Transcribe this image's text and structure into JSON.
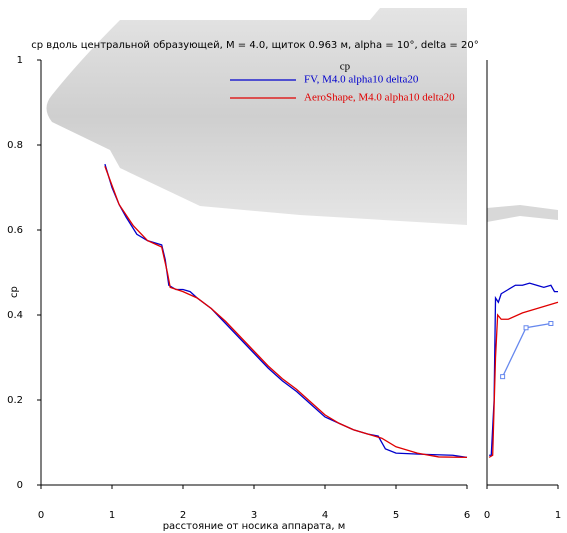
{
  "chart_data": [
    {
      "type": "line",
      "title": "cp вдоль центральной образующей, M = 4.0, щиток 0.963 м, alpha = 10°, delta = 20°",
      "x_label": "расстояние от носика аппарата, м",
      "y_label": "cp",
      "legend_title": "cp",
      "xlim": [
        0,
        6
      ],
      "xticks": [
        0,
        1,
        2,
        3,
        4,
        5,
        6
      ],
      "ylim": [
        0,
        1
      ],
      "yticks": [
        0,
        0.2,
        0.4,
        0.6,
        0.8,
        1
      ],
      "series": [
        {
          "name": "FV, M4.0 alpha10 delta20",
          "color": "#0000cc",
          "x": [
            0.9,
            1.0,
            1.1,
            1.2,
            1.35,
            1.5,
            1.7,
            1.75,
            1.8,
            1.9,
            2.0,
            2.1,
            2.2,
            2.4,
            2.6,
            2.8,
            3.0,
            3.2,
            3.4,
            3.6,
            3.8,
            4.0,
            4.2,
            4.4,
            4.6,
            4.75,
            4.85,
            5.0,
            5.4,
            5.8,
            6.0
          ],
          "values": [
            0.755,
            0.7,
            0.66,
            0.63,
            0.59,
            0.575,
            0.565,
            0.53,
            0.47,
            0.46,
            0.46,
            0.455,
            0.44,
            0.415,
            0.38,
            0.345,
            0.31,
            0.275,
            0.245,
            0.22,
            0.19,
            0.16,
            0.145,
            0.13,
            0.12,
            0.115,
            0.085,
            0.075,
            0.072,
            0.07,
            0.065
          ]
        },
        {
          "name": "AeroShape, M4.0 alpha10 delta20",
          "color": "#e00000",
          "x": [
            0.9,
            1.1,
            1.3,
            1.5,
            1.7,
            1.78,
            1.82,
            2.0,
            2.2,
            2.4,
            2.6,
            2.8,
            3.0,
            3.2,
            3.4,
            3.6,
            3.8,
            4.0,
            4.2,
            4.4,
            4.6,
            4.8,
            5.0,
            5.3,
            5.6,
            6.0
          ],
          "values": [
            0.75,
            0.66,
            0.61,
            0.575,
            0.56,
            0.5,
            0.465,
            0.455,
            0.44,
            0.415,
            0.385,
            0.35,
            0.315,
            0.28,
            0.25,
            0.225,
            0.195,
            0.165,
            0.145,
            0.13,
            0.12,
            0.11,
            0.09,
            0.075,
            0.066,
            0.065
          ]
        }
      ]
    },
    {
      "type": "line",
      "xlim": [
        0,
        1
      ],
      "xticks": [
        0,
        1
      ],
      "ylim": [
        0,
        1
      ],
      "series": [
        {
          "color": "#0000cc",
          "x": [
            0.03,
            0.06,
            0.1,
            0.12,
            0.16,
            0.2,
            0.3,
            0.4,
            0.5,
            0.6,
            0.7,
            0.8,
            0.9,
            0.95,
            1.0
          ],
          "values": [
            0.07,
            0.07,
            0.2,
            0.44,
            0.43,
            0.45,
            0.46,
            0.47,
            0.47,
            0.475,
            0.47,
            0.465,
            0.47,
            0.455,
            0.455
          ]
        },
        {
          "color": "#e00000",
          "x": [
            0.03,
            0.08,
            0.12,
            0.15,
            0.2,
            0.3,
            0.5,
            0.7,
            0.9,
            1.0
          ],
          "values": [
            0.065,
            0.07,
            0.3,
            0.4,
            0.39,
            0.39,
            0.405,
            0.415,
            0.425,
            0.43
          ]
        },
        {
          "color": "#6688ee",
          "markers": "square",
          "x": [
            0.22,
            0.55,
            0.9
          ],
          "values": [
            0.255,
            0.37,
            0.38
          ]
        }
      ]
    }
  ]
}
